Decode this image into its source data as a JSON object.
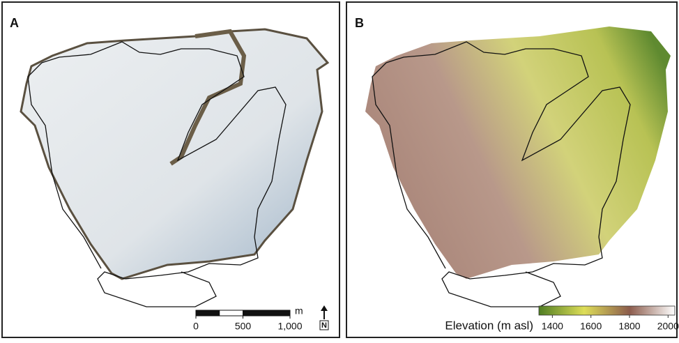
{
  "panels": [
    {
      "label": "A"
    },
    {
      "label": "B"
    }
  ],
  "scale_bar": {
    "unit": "m",
    "lim": [
      0,
      1000
    ],
    "ticks": [
      0,
      500,
      {
        "value": 1000,
        "label": "1,000"
      }
    ],
    "bar_edges": [
      0,
      250,
      500,
      1000
    ]
  },
  "north_arrow": {
    "label": "N"
  },
  "colorbar": {
    "label": "Elevation (m asl)",
    "lim": [
      1330,
      2035
    ],
    "ticks": [
      1400,
      1600,
      1800,
      2000
    ],
    "colors": [
      "#4f7d22",
      "#dede58",
      "#8c5c4c",
      "#ffffff"
    ]
  }
}
